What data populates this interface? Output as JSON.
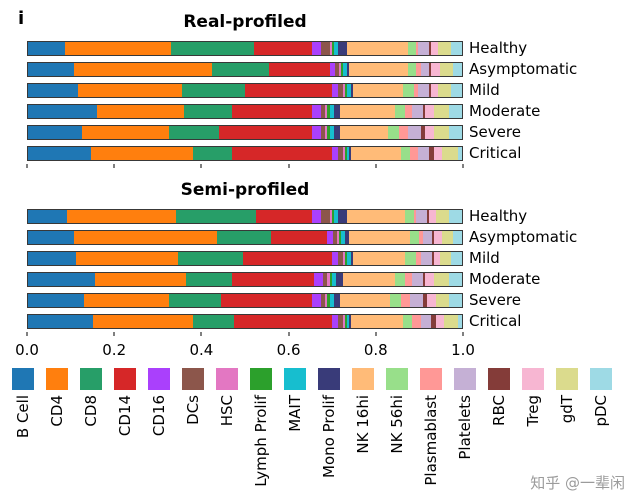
{
  "figure": {
    "panel_label": "i",
    "watermark": "知乎 @一辈闲"
  },
  "chart_data": {
    "type": "bar",
    "subtype": "horizontal-stacked-proportions",
    "x_axis": {
      "range": [
        0,
        1
      ],
      "tick_labels": [
        "0.0",
        "0.2",
        "0.4",
        "0.6",
        "0.8",
        "1.0"
      ]
    },
    "legend_position": "bottom",
    "cell_types": [
      {
        "name": "B Cell",
        "color": "#1f77b4"
      },
      {
        "name": "CD4",
        "color": "#ff7f0e"
      },
      {
        "name": "CD8",
        "color": "#279e68"
      },
      {
        "name": "CD14",
        "color": "#d62728"
      },
      {
        "name": "CD16",
        "color": "#aa40fc"
      },
      {
        "name": "DCs",
        "color": "#8c564b"
      },
      {
        "name": "HSC",
        "color": "#e377c2"
      },
      {
        "name": "Lymph Prolif",
        "color": "#2ca02c"
      },
      {
        "name": "MAIT",
        "color": "#17becf"
      },
      {
        "name": "Mono Prolif",
        "color": "#393b79"
      },
      {
        "name": "NK 16hi",
        "color": "#ffbb78"
      },
      {
        "name": "NK 56hi",
        "color": "#98df8a"
      },
      {
        "name": "Plasmablast",
        "color": "#ff9896"
      },
      {
        "name": "Platelets",
        "color": "#c5b0d5"
      },
      {
        "name": "RBC",
        "color": "#843c39"
      },
      {
        "name": "Treg",
        "color": "#f7b6d2"
      },
      {
        "name": "gdT",
        "color": "#dbdb8d"
      },
      {
        "name": "pDC",
        "color": "#9edae5"
      }
    ],
    "panels": [
      {
        "title": "Real-profiled",
        "rows": [
          {
            "label": "Healthy",
            "values": [
              0.085,
              0.245,
              0.19,
              0.135,
              0.02,
              0.02,
              0.005,
              0.005,
              0.01,
              0.02,
              0.14,
              0.02,
              0.005,
              0.025,
              0.005,
              0.015,
              0.03,
              0.025
            ]
          },
          {
            "label": "Asymptomatic",
            "values": [
              0.105,
              0.32,
              0.13,
              0.14,
              0.012,
              0.01,
              0.005,
              0.005,
              0.008,
              0.005,
              0.135,
              0.02,
              0.01,
              0.02,
              0.005,
              0.02,
              0.03,
              0.02
            ]
          },
          {
            "label": "Mild",
            "values": [
              0.115,
              0.24,
              0.145,
              0.2,
              0.015,
              0.01,
              0.005,
              0.005,
              0.01,
              0.005,
              0.115,
              0.025,
              0.01,
              0.025,
              0.005,
              0.015,
              0.03,
              0.025
            ]
          },
          {
            "label": "Moderate",
            "values": [
              0.16,
              0.2,
              0.11,
              0.185,
              0.02,
              0.01,
              0.005,
              0.005,
              0.01,
              0.015,
              0.125,
              0.025,
              0.015,
              0.025,
              0.005,
              0.02,
              0.035,
              0.03
            ]
          },
          {
            "label": "Severe",
            "values": [
              0.125,
              0.2,
              0.115,
              0.215,
              0.02,
              0.01,
              0.005,
              0.005,
              0.01,
              0.015,
              0.11,
              0.025,
              0.02,
              0.03,
              0.01,
              0.02,
              0.035,
              0.03
            ]
          },
          {
            "label": "Critical",
            "values": [
              0.145,
              0.235,
              0.09,
              0.23,
              0.015,
              0.01,
              0.005,
              0.005,
              0.005,
              0.005,
              0.115,
              0.02,
              0.02,
              0.025,
              0.01,
              0.02,
              0.035,
              0.01
            ]
          }
        ]
      },
      {
        "title": "Semi-profiled",
        "rows": [
          {
            "label": "Healthy",
            "values": [
              0.09,
              0.25,
              0.185,
              0.13,
              0.02,
              0.02,
              0.005,
              0.005,
              0.01,
              0.02,
              0.135,
              0.02,
              0.005,
              0.025,
              0.005,
              0.015,
              0.03,
              0.03
            ]
          },
          {
            "label": "Asymptomatic",
            "values": [
              0.105,
              0.33,
              0.125,
              0.13,
              0.012,
              0.01,
              0.005,
              0.005,
              0.008,
              0.01,
              0.14,
              0.02,
              0.01,
              0.02,
              0.005,
              0.02,
              0.025,
              0.02
            ]
          },
          {
            "label": "Mild",
            "values": [
              0.11,
              0.235,
              0.15,
              0.205,
              0.015,
              0.01,
              0.005,
              0.005,
              0.01,
              0.005,
              0.12,
              0.025,
              0.01,
              0.025,
              0.005,
              0.015,
              0.025,
              0.025
            ]
          },
          {
            "label": "Moderate",
            "values": [
              0.155,
              0.21,
              0.105,
              0.19,
              0.02,
              0.01,
              0.005,
              0.005,
              0.01,
              0.015,
              0.12,
              0.025,
              0.015,
              0.025,
              0.005,
              0.02,
              0.035,
              0.03
            ]
          },
          {
            "label": "Severe",
            "values": [
              0.13,
              0.195,
              0.12,
              0.21,
              0.02,
              0.01,
              0.005,
              0.005,
              0.01,
              0.015,
              0.115,
              0.025,
              0.02,
              0.03,
              0.01,
              0.02,
              0.03,
              0.03
            ]
          },
          {
            "label": "Critical",
            "values": [
              0.15,
              0.23,
              0.095,
              0.225,
              0.015,
              0.01,
              0.005,
              0.005,
              0.005,
              0.005,
              0.12,
              0.02,
              0.02,
              0.025,
              0.01,
              0.02,
              0.03,
              0.01
            ]
          }
        ]
      }
    ]
  }
}
